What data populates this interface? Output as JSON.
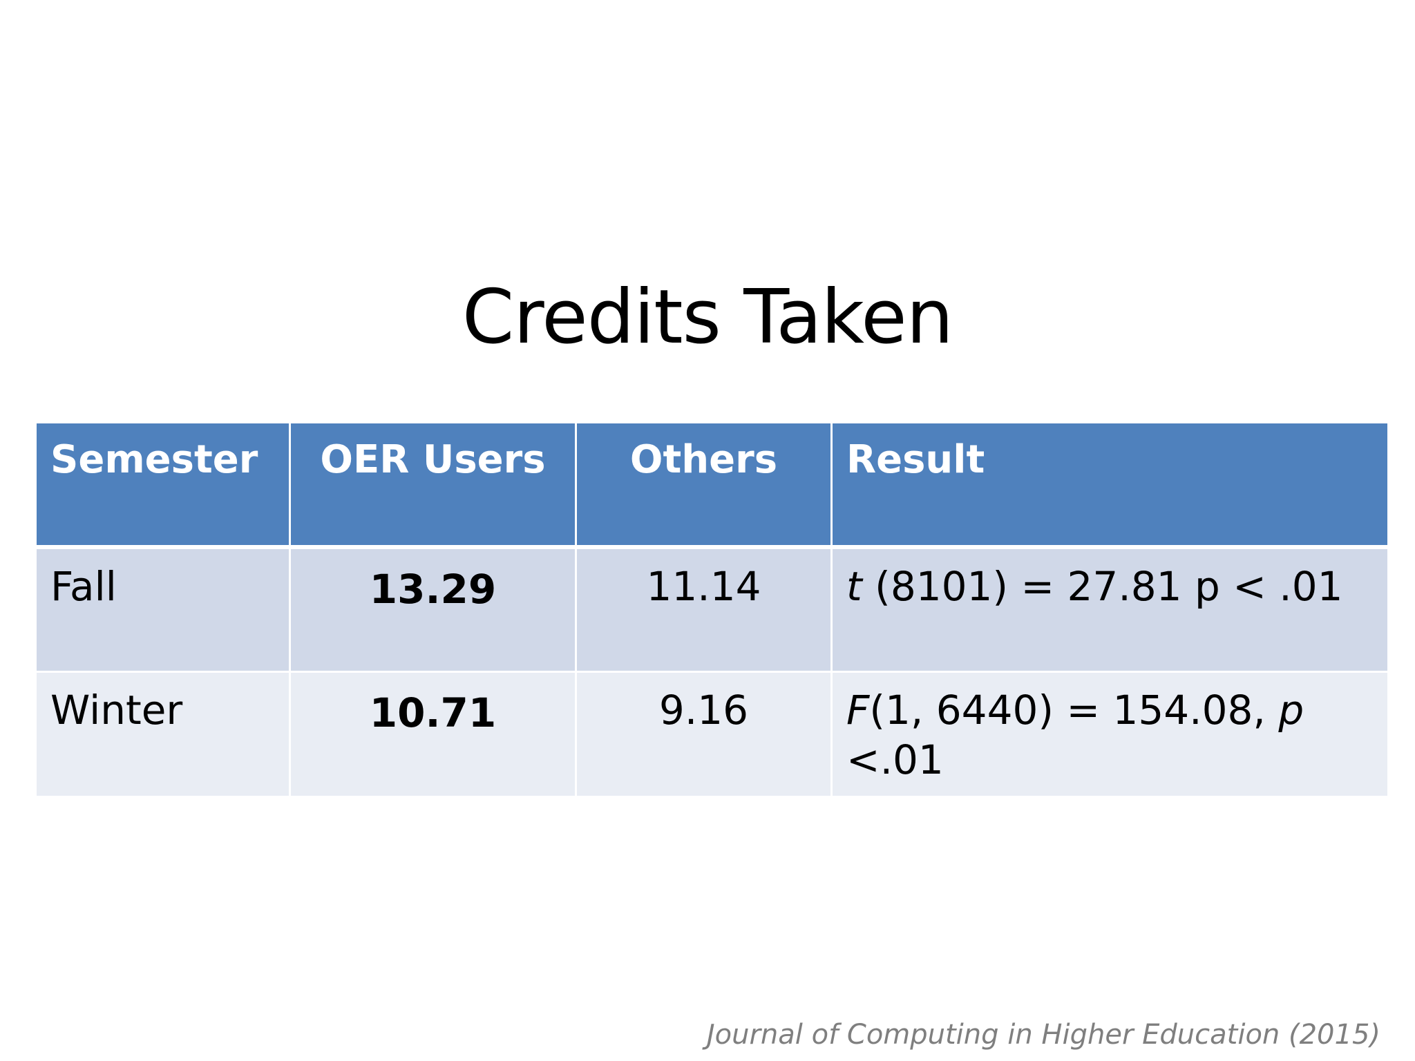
{
  "slide": {
    "title": "Credits Taken",
    "citation": "Journal of Computing in Higher Education (2015)"
  },
  "table": {
    "headers": [
      "Semester",
      "OER Users",
      "Others",
      "Result"
    ],
    "rows": [
      {
        "semester": "Fall",
        "oer_users": "13.29",
        "others": "11.14",
        "result_stat": "t",
        "result_rest": " (8101) = 27.81 p < .01"
      },
      {
        "semester": "Winter",
        "oer_users": "10.71",
        "others": "9.16",
        "result_stat": "F",
        "result_mid": "(1, 6440) = 154.08, ",
        "result_p": "p",
        "result_end": " <.01"
      }
    ]
  },
  "colors": {
    "header_bg": "#4f81bd",
    "row_odd_bg": "#d0d8e8",
    "row_even_bg": "#e9edf4",
    "citation": "#7f7f7f"
  }
}
